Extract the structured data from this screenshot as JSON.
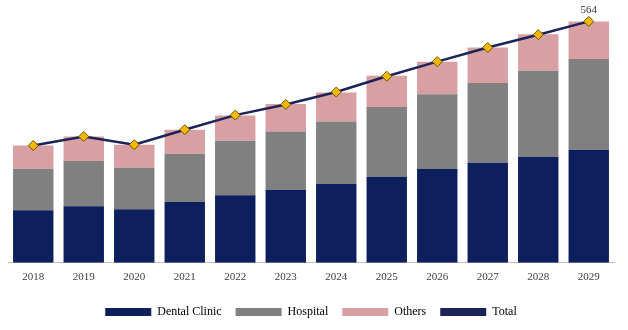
{
  "chart_data": {
    "type": "bar",
    "stacked": true,
    "categories": [
      "2018",
      "2019",
      "2020",
      "2021",
      "2022",
      "2023",
      "2024",
      "2025",
      "2026",
      "2027",
      "2028",
      "2029"
    ],
    "series": [
      {
        "name": "Dental Clinic",
        "type": "bar",
        "color": "#0d1f5c",
        "values": [
          123,
          132,
          125,
          142,
          158,
          170,
          184,
          201,
          219,
          234,
          248,
          264
        ]
      },
      {
        "name": "Hospital",
        "type": "bar",
        "color": "#808080",
        "values": [
          97,
          106,
          97,
          113,
          127,
          137,
          146,
          163,
          175,
          186,
          201,
          212
        ]
      },
      {
        "name": "Others",
        "type": "bar",
        "color": "#d9a0a3",
        "values": [
          54,
          57,
          54,
          56,
          59,
          64,
          68,
          73,
          76,
          83,
          85,
          88
        ]
      },
      {
        "name": "Total",
        "type": "line",
        "color": "#1a2456",
        "marker": "diamond",
        "line_style": "solid",
        "values": [
          274,
          295,
          276,
          311,
          345,
          370,
          399,
          436,
          470,
          503,
          533,
          564
        ],
        "value_labels": [
          null,
          null,
          null,
          null,
          null,
          null,
          null,
          null,
          null,
          null,
          null,
          "564"
        ]
      }
    ],
    "ylim": [
      0,
      600
    ],
    "grid": false,
    "legend": "bottom",
    "tick_labels": "x"
  }
}
